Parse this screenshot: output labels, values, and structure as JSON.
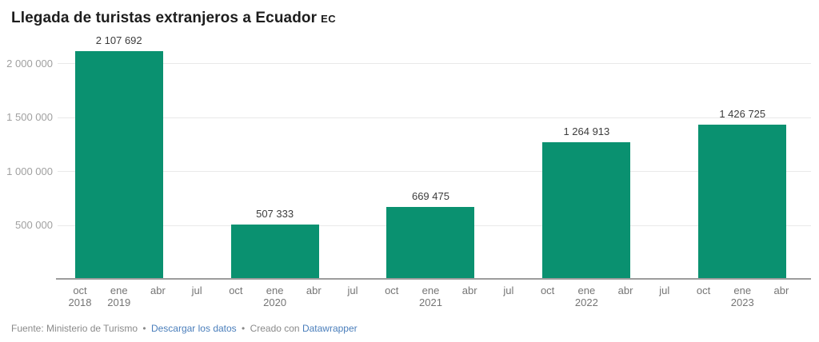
{
  "header": {
    "title": "Llegada de turistas extranjeros a Ecuador",
    "title_suffix": "EC"
  },
  "footer": {
    "source": "Fuente: Ministerio de Turismo",
    "sep1": "•",
    "download_label": "Descargar los datos",
    "sep2": "•",
    "created_prefix": "Creado con",
    "tool_label": "Datawrapper",
    "link_color": "#4a7ebb"
  },
  "chart_data": {
    "type": "bar",
    "title": "Llegada de turistas extranjeros a Ecuador EC",
    "bar_color": "#0a9170",
    "ylim": [
      0,
      2150000
    ],
    "grid": true,
    "y_ticks": [
      {
        "value": 500000,
        "label": "500 000"
      },
      {
        "value": 1000000,
        "label": "1 000 000"
      },
      {
        "value": 1500000,
        "label": "1 500 000"
      },
      {
        "value": 2000000,
        "label": "2 000 000"
      }
    ],
    "x_ticks": [
      {
        "m": "oct",
        "y": "2018"
      },
      {
        "m": "ene",
        "y": "2019"
      },
      {
        "m": "abr",
        "y": ""
      },
      {
        "m": "jul",
        "y": ""
      },
      {
        "m": "oct",
        "y": ""
      },
      {
        "m": "ene",
        "y": "2020"
      },
      {
        "m": "abr",
        "y": ""
      },
      {
        "m": "jul",
        "y": ""
      },
      {
        "m": "oct",
        "y": ""
      },
      {
        "m": "ene",
        "y": "2021"
      },
      {
        "m": "abr",
        "y": ""
      },
      {
        "m": "jul",
        "y": ""
      },
      {
        "m": "oct",
        "y": ""
      },
      {
        "m": "ene",
        "y": "2022"
      },
      {
        "m": "abr",
        "y": ""
      },
      {
        "m": "jul",
        "y": ""
      },
      {
        "m": "oct",
        "y": ""
      },
      {
        "m": "ene",
        "y": "2023"
      },
      {
        "m": "abr",
        "y": ""
      }
    ],
    "bars": [
      {
        "value": 2107692,
        "value_label": "2 107 692",
        "center_tick_index": 1,
        "period": "oct 2018 - abr 2019"
      },
      {
        "value": 507333,
        "value_label": "507 333",
        "center_tick_index": 5,
        "period": "oct 2019 - abr 2020"
      },
      {
        "value": 669475,
        "value_label": "669 475",
        "center_tick_index": 9,
        "period": "oct 2020 - abr 2021"
      },
      {
        "value": 1264913,
        "value_label": "1 264 913",
        "center_tick_index": 13,
        "period": "oct 2021 - abr 2022"
      },
      {
        "value": 1426725,
        "value_label": "1 426 725",
        "center_tick_index": 17,
        "period": "oct 2022 - abr 2023"
      }
    ]
  }
}
